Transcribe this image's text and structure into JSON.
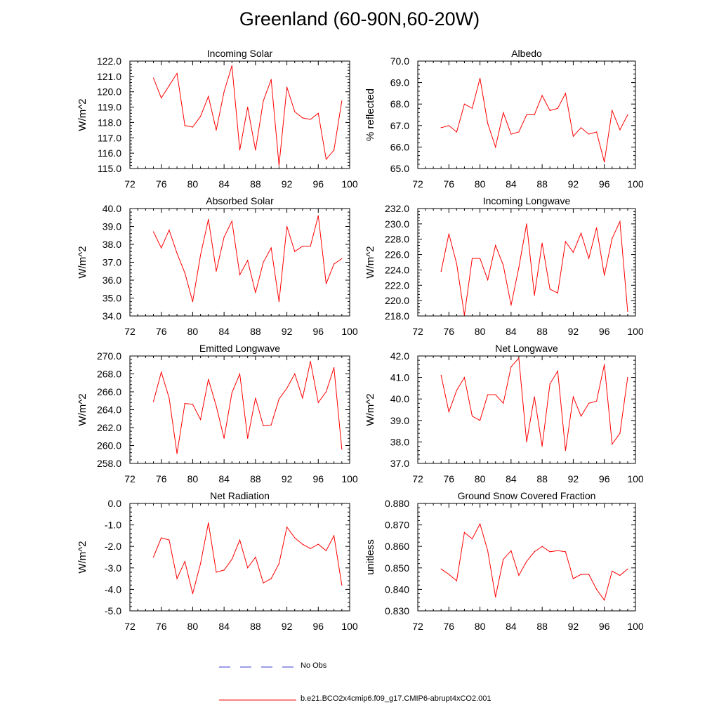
{
  "title": "Greenland (60-90N,60-20W)",
  "colors": {
    "model": "#ff0000",
    "obs": "#3b3bd8",
    "axis": "#000000"
  },
  "legend": {
    "obs_label": "No Obs",
    "model_label": "b.e21.BCO2x4cmip6.f09_g17.CMIP6-abrupt4xCO2.001"
  },
  "chart_data": [
    {
      "type": "line",
      "title": "Incoming Solar",
      "ylabel": "W/m^2",
      "xlim": [
        72,
        100
      ],
      "xticks": [
        72,
        76,
        80,
        84,
        88,
        92,
        96,
        100
      ],
      "ylim": [
        115,
        122
      ],
      "yticks": [
        "115.0",
        "116.0",
        "117.0",
        "118.0",
        "119.0",
        "120.0",
        "121.0",
        "122.0"
      ],
      "x": [
        75,
        76,
        77,
        78,
        79,
        80,
        81,
        82,
        83,
        84,
        85,
        86,
        87,
        88,
        89,
        90,
        91,
        92,
        93,
        94,
        95,
        96,
        97,
        98,
        99
      ],
      "values": [
        120.9,
        119.6,
        120.4,
        121.2,
        117.8,
        117.7,
        118.4,
        119.7,
        117.5,
        120.0,
        121.7,
        116.2,
        119.0,
        116.2,
        119.4,
        120.8,
        115.2,
        120.3,
        118.7,
        118.3,
        118.2,
        118.6,
        115.6,
        116.2,
        119.4
      ]
    },
    {
      "type": "line",
      "title": "Albedo",
      "ylabel": "% reflected",
      "xlim": [
        72,
        100
      ],
      "xticks": [
        72,
        76,
        80,
        84,
        88,
        92,
        96,
        100
      ],
      "ylim": [
        65,
        70
      ],
      "yticks": [
        "65.0",
        "66.0",
        "67.0",
        "68.0",
        "69.0",
        "70.0"
      ],
      "x": [
        75,
        76,
        77,
        78,
        79,
        80,
        81,
        82,
        83,
        84,
        85,
        86,
        87,
        88,
        89,
        90,
        91,
        92,
        93,
        94,
        95,
        96,
        97,
        98,
        99
      ],
      "values": [
        66.9,
        67.0,
        66.7,
        68.0,
        67.8,
        69.2,
        67.1,
        66.0,
        67.6,
        66.6,
        66.7,
        67.5,
        67.5,
        68.4,
        67.7,
        67.8,
        68.5,
        66.5,
        66.9,
        66.6,
        66.7,
        65.3,
        67.7,
        66.8,
        67.5
      ]
    },
    {
      "type": "line",
      "title": "Absorbed Solar",
      "ylabel": "W/m^2",
      "xlim": [
        72,
        100
      ],
      "xticks": [
        72,
        76,
        80,
        84,
        88,
        92,
        96,
        100
      ],
      "ylim": [
        34,
        40
      ],
      "yticks": [
        "34.0",
        "35.0",
        "36.0",
        "37.0",
        "38.0",
        "39.0",
        "40.0"
      ],
      "x": [
        75,
        76,
        77,
        78,
        79,
        80,
        81,
        82,
        83,
        84,
        85,
        86,
        87,
        88,
        89,
        90,
        91,
        92,
        93,
        94,
        95,
        96,
        97,
        98,
        99
      ],
      "values": [
        38.7,
        37.8,
        38.8,
        37.5,
        36.4,
        34.8,
        37.4,
        39.4,
        36.5,
        38.4,
        39.3,
        36.3,
        37.1,
        35.3,
        37.0,
        37.8,
        34.8,
        39.0,
        37.6,
        37.9,
        37.9,
        39.6,
        35.8,
        36.9,
        37.2
      ]
    },
    {
      "type": "line",
      "title": "Incoming Longwave",
      "ylabel": "W/m^2",
      "xlim": [
        72,
        100
      ],
      "xticks": [
        72,
        76,
        80,
        84,
        88,
        92,
        96,
        100
      ],
      "ylim": [
        218,
        232
      ],
      "yticks": [
        "218.0",
        "220.0",
        "222.0",
        "224.0",
        "226.0",
        "228.0",
        "230.0",
        "232.0"
      ],
      "x": [
        75,
        76,
        77,
        78,
        79,
        80,
        81,
        82,
        83,
        84,
        85,
        86,
        87,
        88,
        89,
        90,
        91,
        92,
        93,
        94,
        95,
        96,
        97,
        98,
        99
      ],
      "values": [
        223.8,
        228.7,
        224.8,
        218.1,
        225.5,
        225.5,
        222.7,
        227.2,
        224.6,
        219.4,
        224.3,
        230.0,
        220.7,
        227.5,
        221.5,
        221.0,
        227.7,
        226.3,
        228.8,
        225.5,
        229.5,
        223.3,
        228.1,
        230.3,
        218.6
      ]
    },
    {
      "type": "line",
      "title": "Emitted Longwave",
      "ylabel": "W/m^2",
      "xlim": [
        72,
        100
      ],
      "xticks": [
        72,
        76,
        80,
        84,
        88,
        92,
        96,
        100
      ],
      "ylim": [
        258,
        270
      ],
      "yticks": [
        "258.0",
        "260.0",
        "262.0",
        "264.0",
        "266.0",
        "268.0",
        "270.0"
      ],
      "x": [
        75,
        76,
        77,
        78,
        79,
        80,
        81,
        82,
        83,
        84,
        85,
        86,
        87,
        88,
        89,
        90,
        91,
        92,
        93,
        94,
        95,
        96,
        97,
        98,
        99
      ],
      "values": [
        264.9,
        268.2,
        265.3,
        259.1,
        264.7,
        264.6,
        262.9,
        267.4,
        264.4,
        260.8,
        265.9,
        268.0,
        260.8,
        265.3,
        262.2,
        262.3,
        265.2,
        266.4,
        268.0,
        265.3,
        269.4,
        264.8,
        266.0,
        268.7,
        259.6
      ]
    },
    {
      "type": "line",
      "title": "Net Longwave",
      "ylabel": "W/m^2",
      "xlim": [
        72,
        100
      ],
      "xticks": [
        72,
        76,
        80,
        84,
        88,
        92,
        96,
        100
      ],
      "ylim": [
        37,
        42
      ],
      "yticks": [
        "37.0",
        "38.0",
        "39.0",
        "40.0",
        "41.0",
        "42.0"
      ],
      "x": [
        75,
        76,
        77,
        78,
        79,
        80,
        81,
        82,
        83,
        84,
        85,
        86,
        87,
        88,
        89,
        90,
        91,
        92,
        93,
        94,
        95,
        96,
        97,
        98,
        99
      ],
      "values": [
        41.1,
        39.4,
        40.4,
        41.0,
        39.2,
        39.0,
        40.2,
        40.2,
        39.8,
        41.5,
        41.9,
        38.0,
        40.1,
        37.8,
        40.7,
        41.3,
        37.6,
        40.1,
        39.2,
        39.8,
        39.9,
        41.6,
        37.9,
        38.4,
        41.0
      ]
    },
    {
      "type": "line",
      "title": "Net Radiation",
      "ylabel": "W/m^2",
      "xlim": [
        72,
        100
      ],
      "xticks": [
        72,
        76,
        80,
        84,
        88,
        92,
        96,
        100
      ],
      "ylim": [
        -5,
        0
      ],
      "yticks": [
        "-5.0",
        "-4.0",
        "-3.0",
        "-2.0",
        "-1.0",
        "0.0"
      ],
      "x": [
        75,
        76,
        77,
        78,
        79,
        80,
        81,
        82,
        83,
        84,
        85,
        86,
        87,
        88,
        89,
        90,
        91,
        92,
        93,
        94,
        95,
        96,
        97,
        98,
        99
      ],
      "values": [
        -2.5,
        -1.6,
        -1.7,
        -3.5,
        -2.7,
        -4.2,
        -2.8,
        -0.9,
        -3.2,
        -3.1,
        -2.6,
        -1.7,
        -3.0,
        -2.5,
        -3.7,
        -3.5,
        -2.8,
        -1.1,
        -1.6,
        -1.9,
        -2.1,
        -1.9,
        -2.2,
        -1.5,
        -3.8
      ]
    },
    {
      "type": "line",
      "title": "Ground Snow Covered Fraction",
      "ylabel": "unitless",
      "xlim": [
        72,
        100
      ],
      "xticks": [
        72,
        76,
        80,
        84,
        88,
        92,
        96,
        100
      ],
      "ylim": [
        0.83,
        0.88
      ],
      "yticks": [
        "0.830",
        "0.840",
        "0.850",
        "0.860",
        "0.870",
        "0.880"
      ],
      "x": [
        75,
        76,
        77,
        78,
        79,
        80,
        81,
        82,
        83,
        84,
        85,
        86,
        87,
        88,
        89,
        90,
        91,
        92,
        93,
        94,
        95,
        96,
        97,
        98,
        99
      ],
      "values": [
        0.8495,
        0.847,
        0.844,
        0.8665,
        0.8635,
        0.8705,
        0.858,
        0.8365,
        0.854,
        0.858,
        0.8465,
        0.853,
        0.8575,
        0.86,
        0.8575,
        0.858,
        0.8575,
        0.845,
        0.847,
        0.847,
        0.84,
        0.835,
        0.8485,
        0.8465,
        0.8495
      ]
    }
  ]
}
